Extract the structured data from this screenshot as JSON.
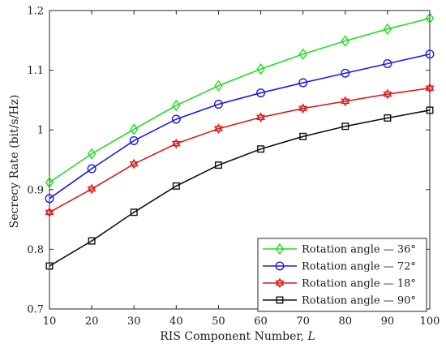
{
  "chart_data": {
    "type": "line",
    "title": "",
    "xlabel": "RIS Component Number, L",
    "xlabel_main": "RIS Component Number, ",
    "xlabel_symbol": "L",
    "ylabel": "Secrecy Rate (bit/s/Hz)",
    "x": [
      10,
      20,
      30,
      40,
      50,
      60,
      70,
      80,
      90,
      100
    ],
    "xlim": [
      10,
      100
    ],
    "ylim": [
      0.7,
      1.2
    ],
    "xticks": [
      10,
      20,
      30,
      40,
      50,
      60,
      70,
      80,
      90,
      100
    ],
    "yticks": [
      0.7,
      0.8,
      0.9,
      1,
      1.1,
      1.2
    ],
    "xtick_labels": [
      "10",
      "20",
      "30",
      "40",
      "50",
      "60",
      "70",
      "80",
      "90",
      "100"
    ],
    "ytick_labels": [
      "0.7",
      "0.8",
      "0.9",
      "1",
      "1.1",
      "1.2"
    ],
    "grid": false,
    "legend_position": "bottom-right",
    "series": [
      {
        "name": "Rotation angle — 36°",
        "color": "#22dd22",
        "marker": "diamond",
        "values": [
          0.912,
          0.96,
          1.001,
          1.041,
          1.074,
          1.102,
          1.127,
          1.149,
          1.169,
          1.187
        ]
      },
      {
        "name": "Rotation angle — 72°",
        "color": "#1a1aee",
        "marker": "circle",
        "values": [
          0.885,
          0.935,
          0.982,
          1.018,
          1.043,
          1.062,
          1.079,
          1.095,
          1.111,
          1.127
        ]
      },
      {
        "name": "Rotation angle — 18°",
        "color": "#dd1a1a",
        "marker": "hexagram",
        "values": [
          0.862,
          0.901,
          0.943,
          0.977,
          1.002,
          1.021,
          1.036,
          1.048,
          1.06,
          1.07
        ]
      },
      {
        "name": "Rotation angle — 90°",
        "color": "#111111",
        "marker": "square",
        "values": [
          0.772,
          0.814,
          0.862,
          0.906,
          0.941,
          0.968,
          0.989,
          1.006,
          1.02,
          1.033
        ]
      }
    ]
  }
}
